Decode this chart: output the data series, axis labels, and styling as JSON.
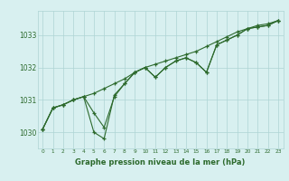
{
  "xlabel": "Graphe pression niveau de la mer (hPa)",
  "hours": [
    0,
    1,
    2,
    3,
    4,
    5,
    6,
    7,
    8,
    9,
    10,
    11,
    12,
    13,
    14,
    15,
    16,
    17,
    18,
    19,
    20,
    21,
    22,
    23
  ],
  "line1": [
    1030.1,
    1030.75,
    1030.85,
    1031.0,
    1031.1,
    1031.2,
    1031.35,
    1031.5,
    1031.65,
    1031.85,
    1032.0,
    1032.1,
    1032.2,
    1032.3,
    1032.4,
    1032.5,
    1032.65,
    1032.8,
    1032.95,
    1033.1,
    1033.2,
    1033.3,
    1033.35,
    1033.45
  ],
  "line2": [
    1030.1,
    1030.75,
    1030.85,
    1031.0,
    1031.1,
    1030.6,
    1030.15,
    1031.1,
    1031.5,
    1031.85,
    1032.0,
    1031.7,
    1032.0,
    1032.2,
    1032.3,
    1032.15,
    1031.85,
    1032.7,
    1032.85,
    1033.0,
    1033.2,
    1033.25,
    1033.3,
    1033.45
  ],
  "line3": [
    1030.1,
    1030.75,
    1030.85,
    1031.0,
    1031.1,
    1030.0,
    1029.8,
    1031.15,
    1031.5,
    1031.85,
    1032.0,
    1031.7,
    1032.0,
    1032.2,
    1032.3,
    1032.15,
    1031.85,
    1032.7,
    1032.85,
    1033.0,
    1033.2,
    1033.25,
    1033.3,
    1033.45
  ],
  "line_color": "#2d6a2d",
  "bg_color": "#d8f0f0",
  "grid_color": "#aed4d4",
  "text_color": "#2d6a2d",
  "ylim_min": 1029.5,
  "ylim_max": 1033.75,
  "yticks": [
    1030,
    1031,
    1032,
    1033
  ]
}
